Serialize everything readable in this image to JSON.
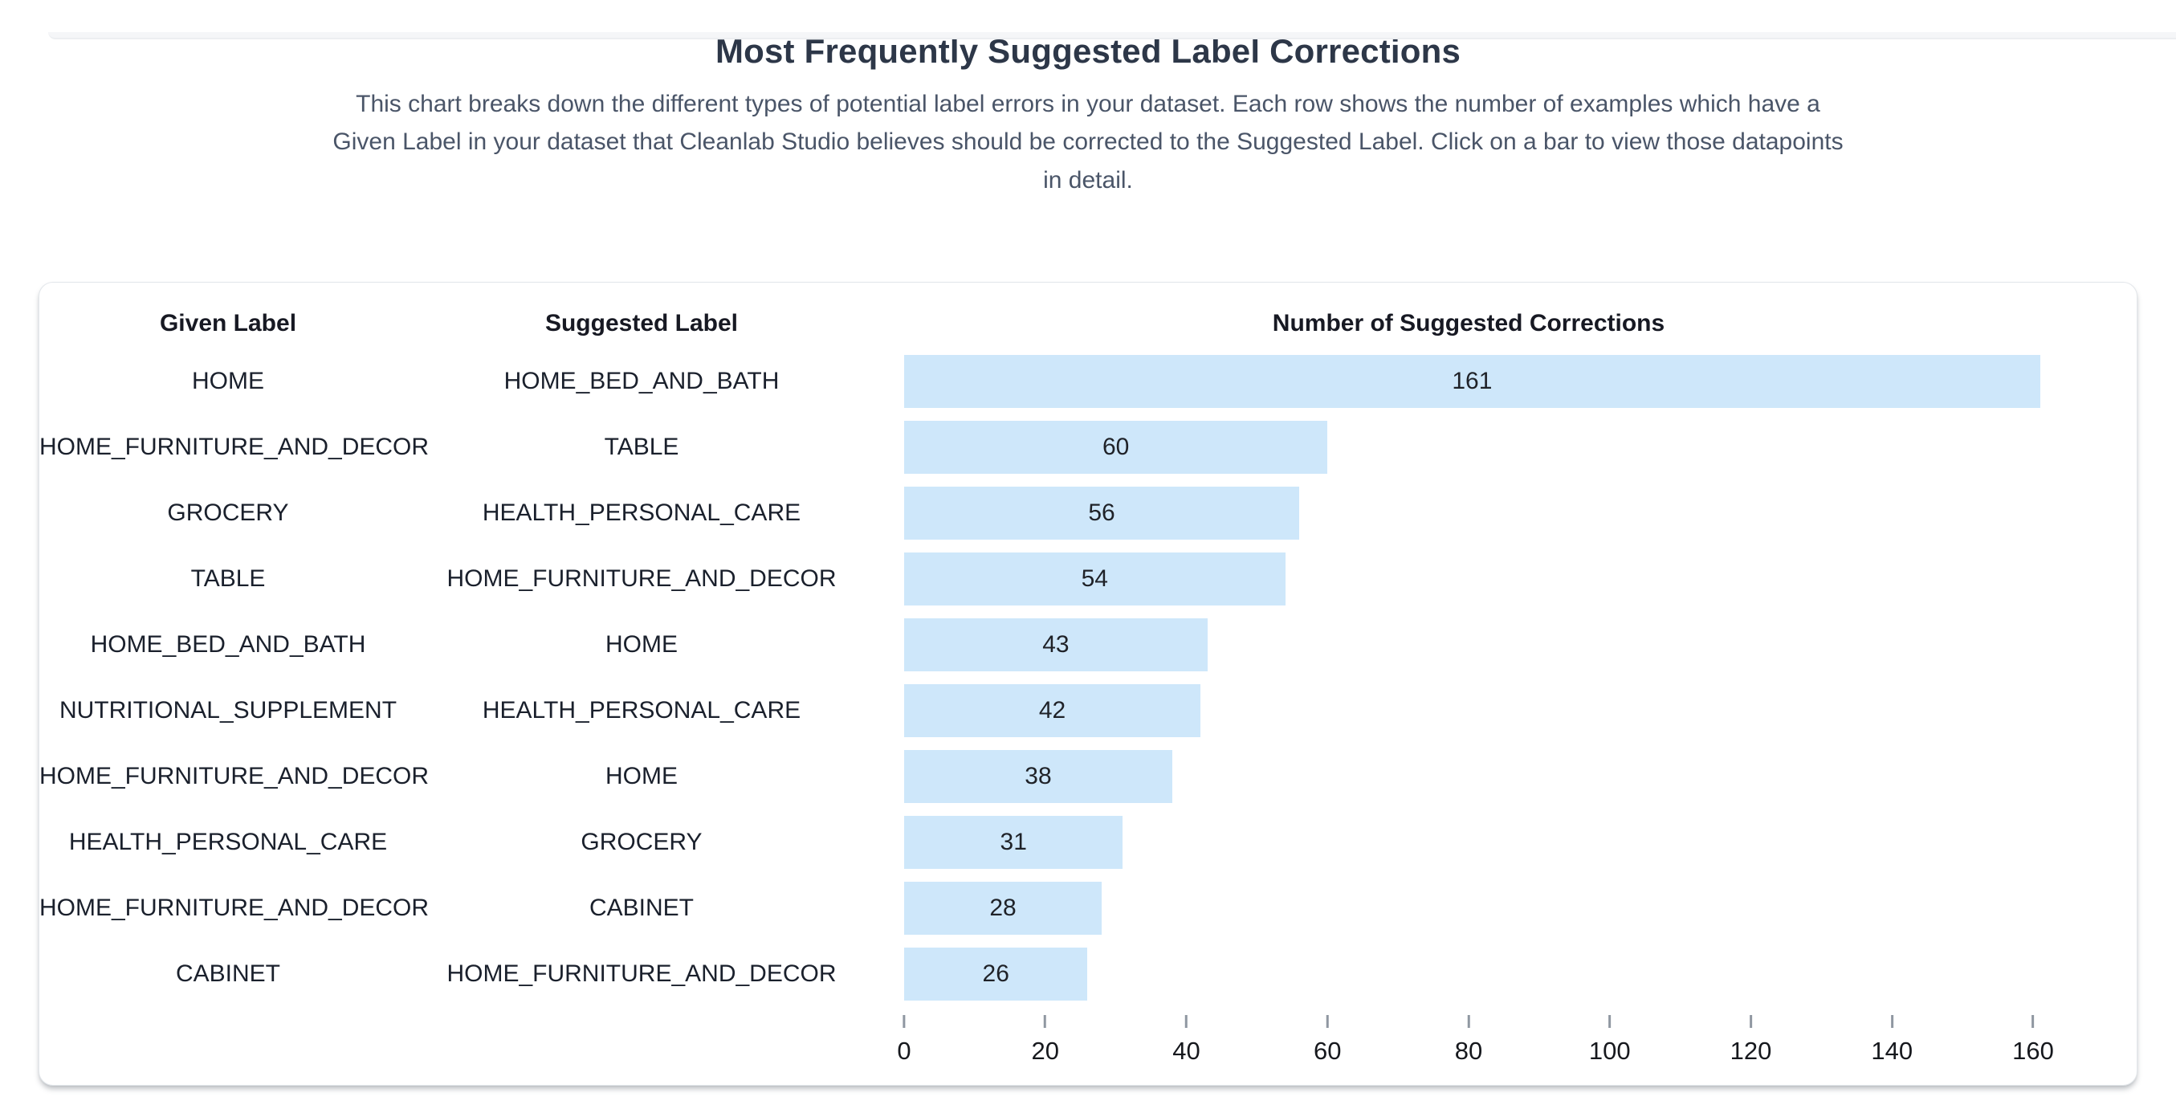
{
  "page": {
    "title": "Most Frequently Suggested Label Corrections",
    "subtitle": "This chart breaks down the different types of potential label errors in your dataset. Each row shows the number of examples which have a Given Label in your dataset that Cleanlab Studio believes should be corrected to the Suggested Label. Click on a bar to view those datapoints in detail."
  },
  "table": {
    "columns": [
      "Given Label",
      "Suggested Label",
      "Number of Suggested Corrections"
    ]
  },
  "colors": {
    "bar_fill": "#cee7fa",
    "title_text": "#2d3748",
    "subtitle_text": "#4a5568",
    "tick_mark": "#8f97a1"
  },
  "chart_data": {
    "type": "bar",
    "orientation": "horizontal",
    "title": "Most Frequently Suggested Label Corrections",
    "xlabel": "Number of Suggested Corrections",
    "columns": [
      "Given Label",
      "Suggested Label",
      "Number of Suggested Corrections"
    ],
    "rows": [
      {
        "given": "HOME",
        "suggested": "HOME_BED_AND_BATH",
        "value": 161
      },
      {
        "given": "HOME_FURNITURE_AND_DECOR",
        "suggested": "TABLE",
        "value": 60
      },
      {
        "given": "GROCERY",
        "suggested": "HEALTH_PERSONAL_CARE",
        "value": 56
      },
      {
        "given": "TABLE",
        "suggested": "HOME_FURNITURE_AND_DECOR",
        "value": 54
      },
      {
        "given": "HOME_BED_AND_BATH",
        "suggested": "HOME",
        "value": 43
      },
      {
        "given": "NUTRITIONAL_SUPPLEMENT",
        "suggested": "HEALTH_PERSONAL_CARE",
        "value": 42
      },
      {
        "given": "HOME_FURNITURE_AND_DECOR",
        "suggested": "HOME",
        "value": 38
      },
      {
        "given": "HEALTH_PERSONAL_CARE",
        "suggested": "GROCERY",
        "value": 31
      },
      {
        "given": "HOME_FURNITURE_AND_DECOR",
        "suggested": "CABINET",
        "value": 28
      },
      {
        "given": "CABINET",
        "suggested": "HOME_FURNITURE_AND_DECOR",
        "value": 26
      }
    ],
    "x_ticks": [
      0,
      20,
      40,
      60,
      80,
      100,
      120,
      140,
      160
    ],
    "xlim": [
      0,
      160
    ],
    "grid": false,
    "legend": false,
    "bar_color": "#cee7fa"
  }
}
